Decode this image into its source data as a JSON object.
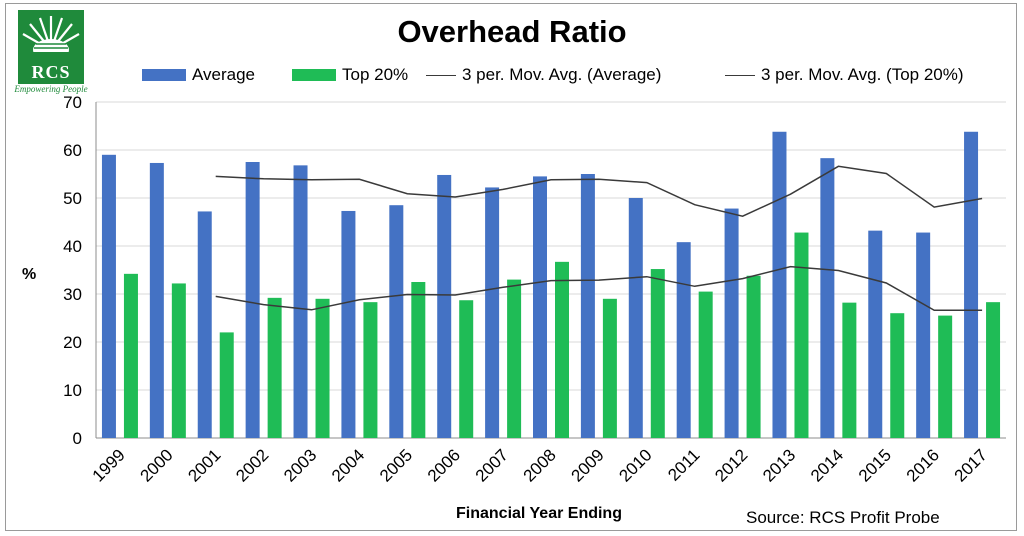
{
  "logo": {
    "text": "RCS",
    "tagline": "Empowering People",
    "color": "#1f8a3b"
  },
  "source_note": "Source: RCS Profit Probe",
  "chart_data": {
    "type": "bar",
    "title": "Overhead Ratio",
    "xlabel": "Financial Year Ending",
    "ylabel": "%",
    "ylim": [
      0,
      70
    ],
    "yticks": [
      0,
      10,
      20,
      30,
      40,
      50,
      60,
      70
    ],
    "grid": true,
    "legend_position": "top",
    "categories": [
      "1999",
      "2000",
      "2001",
      "2002",
      "2003",
      "2004",
      "2005",
      "2006",
      "2007",
      "2008",
      "2009",
      "2010",
      "2011",
      "2012",
      "2013",
      "2014",
      "2015",
      "2016",
      "2017"
    ],
    "series": [
      {
        "name": "Average",
        "kind": "bar",
        "color": "#4472c4",
        "values": [
          59,
          57.3,
          47.2,
          57.5,
          56.8,
          47.3,
          48.5,
          54.8,
          52.2,
          54.5,
          55,
          50,
          40.8,
          47.8,
          63.8,
          58.3,
          43.2,
          42.8,
          63.8
        ]
      },
      {
        "name": "Top 20%",
        "kind": "bar",
        "color": "#1fbc56",
        "values": [
          34.2,
          32.2,
          22,
          29.2,
          29,
          28.3,
          32.5,
          28.7,
          33,
          36.7,
          29,
          35.2,
          30.5,
          33.8,
          42.8,
          28.2,
          26,
          25.5,
          28.3
        ]
      },
      {
        "name": "3 per. Mov. Avg. (Average)",
        "kind": "line",
        "color": "#3a3a3a",
        "values": [
          null,
          null,
          54.5,
          54,
          53.8,
          53.9,
          50.9,
          50.2,
          51.8,
          53.8,
          53.9,
          53.2,
          48.6,
          46.2,
          50.8,
          56.6,
          55.1,
          48.1,
          49.9
        ]
      },
      {
        "name": "3 per. Mov. Avg. (Top 20%)",
        "kind": "line",
        "color": "#3a3a3a",
        "values": [
          null,
          null,
          29.5,
          27.8,
          26.7,
          28.8,
          29.9,
          29.8,
          31.4,
          32.8,
          32.9,
          33.6,
          31.6,
          33.2,
          35.7,
          34.9,
          32.3,
          26.6,
          26.6
        ]
      }
    ]
  }
}
